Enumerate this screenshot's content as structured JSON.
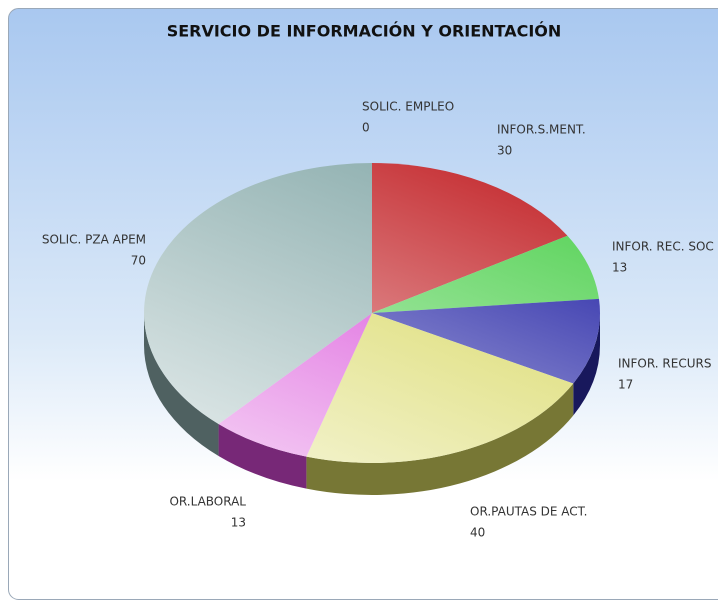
{
  "chart_data": {
    "type": "pie3d",
    "title": "SERVICIO DE INFORMACIÓN Y ORIENTACIÓN",
    "categories": [
      "SOLIC. EMPLEO",
      "INFOR.S.MENT.",
      "INFOR. REC. SOC",
      "INFOR. RECURS",
      "OR.PAUTAS DE ACT.",
      "OR.LABORAL",
      "SOLIC. PZA APEM"
    ],
    "values": [
      0,
      30,
      13,
      17,
      40,
      13,
      70
    ],
    "colors": [
      "#8a8a8a",
      "#c8383c",
      "#5ed45e",
      "#2c2ca8",
      "#d8d860",
      "#d848d8",
      "#8fb0b0"
    ]
  }
}
